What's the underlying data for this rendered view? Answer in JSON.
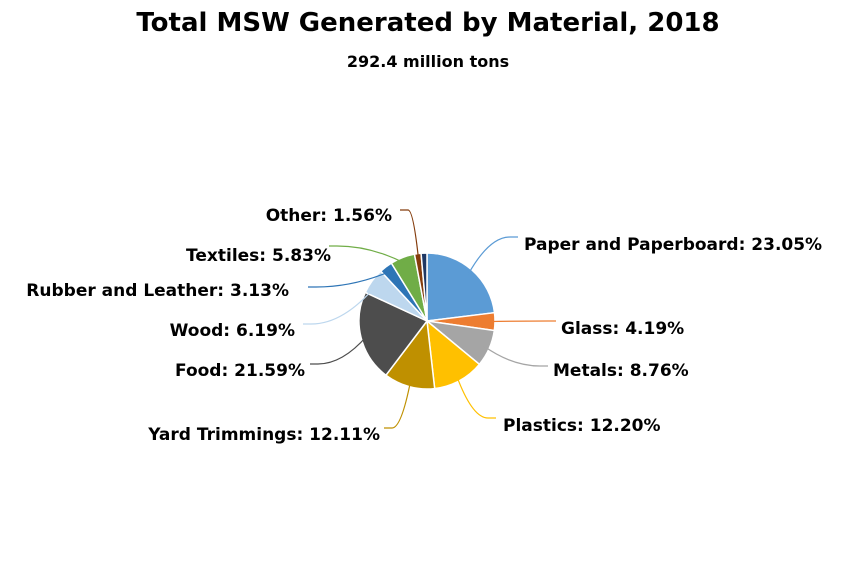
{
  "chart_data": {
    "type": "pie",
    "title": "Total MSW Generated by Material, 2018",
    "subtitle": "292.4 million tons",
    "slices": [
      {
        "name": "Paper and Paperboard",
        "value": 23.05,
        "label": "Paper and Paperboard: 23.05%",
        "color": "#5b9bd5"
      },
      {
        "name": "Glass",
        "value": 4.19,
        "label": "Glass: 4.19%",
        "color": "#ed7d31"
      },
      {
        "name": "Metals",
        "value": 8.76,
        "label": "Metals: 8.76%",
        "color": "#a5a5a5"
      },
      {
        "name": "Plastics",
        "value": 12.2,
        "label": "Plastics: 12.20%",
        "color": "#ffc000"
      },
      {
        "name": "Yard Trimmings",
        "value": 12.11,
        "label": "Yard Trimmings: 12.11%",
        "color": "#bf9000"
      },
      {
        "name": "Food",
        "value": 21.59,
        "label": "Food: 21.59%",
        "color": "#4d4d4d"
      },
      {
        "name": "Wood",
        "value": 6.19,
        "label": "Wood: 6.19%",
        "color": "#bdd7ee"
      },
      {
        "name": "Rubber and Leather",
        "value": 3.13,
        "label": "Rubber and Leather: 3.13%",
        "color": "#2e75b6"
      },
      {
        "name": "Textiles",
        "value": 5.83,
        "label": "Textiles: 5.83%",
        "color": "#70ad47"
      },
      {
        "name": "Other",
        "value": 1.56,
        "label": "Other: 1.56%",
        "color": "#843c0c"
      },
      {
        "name": "",
        "value": 1.39,
        "label": "",
        "color": "#1f3864"
      }
    ]
  }
}
